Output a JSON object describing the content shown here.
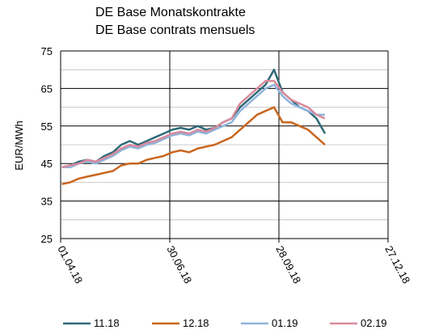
{
  "chart_data": {
    "type": "line",
    "title": [
      "DE Base Monatskontrakte",
      "DE Base contrats mensuels"
    ],
    "y_label": "EUR/MWh",
    "x": [
      "2018-04-02",
      "2018-04-09",
      "2018-04-16",
      "2018-04-23",
      "2018-04-30",
      "2018-05-07",
      "2018-05-14",
      "2018-05-21",
      "2018-05-28",
      "2018-06-04",
      "2018-06-11",
      "2018-06-18",
      "2018-06-25",
      "2018-07-02",
      "2018-07-09",
      "2018-07-16",
      "2018-07-23",
      "2018-07-30",
      "2018-08-06",
      "2018-08-13",
      "2018-08-20",
      "2018-08-27",
      "2018-09-03",
      "2018-09-10",
      "2018-09-17",
      "2018-09-24",
      "2018-10-01",
      "2018-10-08",
      "2018-10-15",
      "2018-10-22",
      "2018-10-29",
      "2018-11-05"
    ],
    "series": [
      {
        "name": "11.18",
        "color": "#2e6a78",
        "values": [
          44,
          44.5,
          45.5,
          46,
          45.5,
          47,
          48,
          50,
          51,
          50,
          51,
          52,
          53,
          54,
          54.5,
          54,
          55,
          54,
          54.5,
          56,
          57,
          60,
          62,
          64,
          66,
          70,
          64,
          62,
          60,
          59,
          57,
          53
        ]
      },
      {
        "name": "12.18",
        "color": "#c9661e",
        "values": [
          39.5,
          40,
          41,
          41.5,
          42,
          42.5,
          43,
          44.5,
          45,
          45,
          46,
          46.5,
          47,
          48,
          48.5,
          48,
          49,
          49.5,
          50,
          51,
          52,
          54,
          56,
          58,
          59,
          60,
          56,
          56,
          55,
          54,
          52,
          50
        ]
      },
      {
        "name": "01.19",
        "color": "#8fb4dc",
        "values": [
          44,
          44,
          45,
          45.5,
          45,
          46,
          47,
          48.5,
          49.5,
          49,
          50,
          50.5,
          51.5,
          52.5,
          53,
          52.5,
          53.5,
          53,
          54,
          55,
          56,
          59,
          61,
          63,
          65,
          66,
          63,
          61,
          60,
          59,
          58,
          58
        ]
      },
      {
        "name": "02.19",
        "color": "#d88a9c",
        "values": [
          44,
          44.5,
          45,
          46,
          45.5,
          46.5,
          47.5,
          49,
          50,
          49.5,
          50.5,
          51,
          52,
          53,
          53.5,
          53,
          54,
          53.5,
          54.5,
          56,
          57,
          61,
          63,
          65,
          67,
          67,
          64,
          62,
          61,
          60,
          58,
          57
        ]
      }
    ],
    "xlim": [
      "2018-04-01",
      "2018-12-27"
    ],
    "xticks": [
      {
        "value": "2018-04-01",
        "label": "01.04.18"
      },
      {
        "value": "2018-06-30",
        "label": "30.06.18"
      },
      {
        "value": "2018-09-28",
        "label": "28.09.18"
      },
      {
        "value": "2018-12-27",
        "label": "27.12.18"
      }
    ],
    "ylim": [
      25,
      75
    ],
    "yticks": [
      25,
      35,
      45,
      55,
      65,
      75
    ],
    "yminorticks": [
      30,
      40,
      50,
      60,
      70
    ],
    "grid": true,
    "legend": "bottom"
  }
}
